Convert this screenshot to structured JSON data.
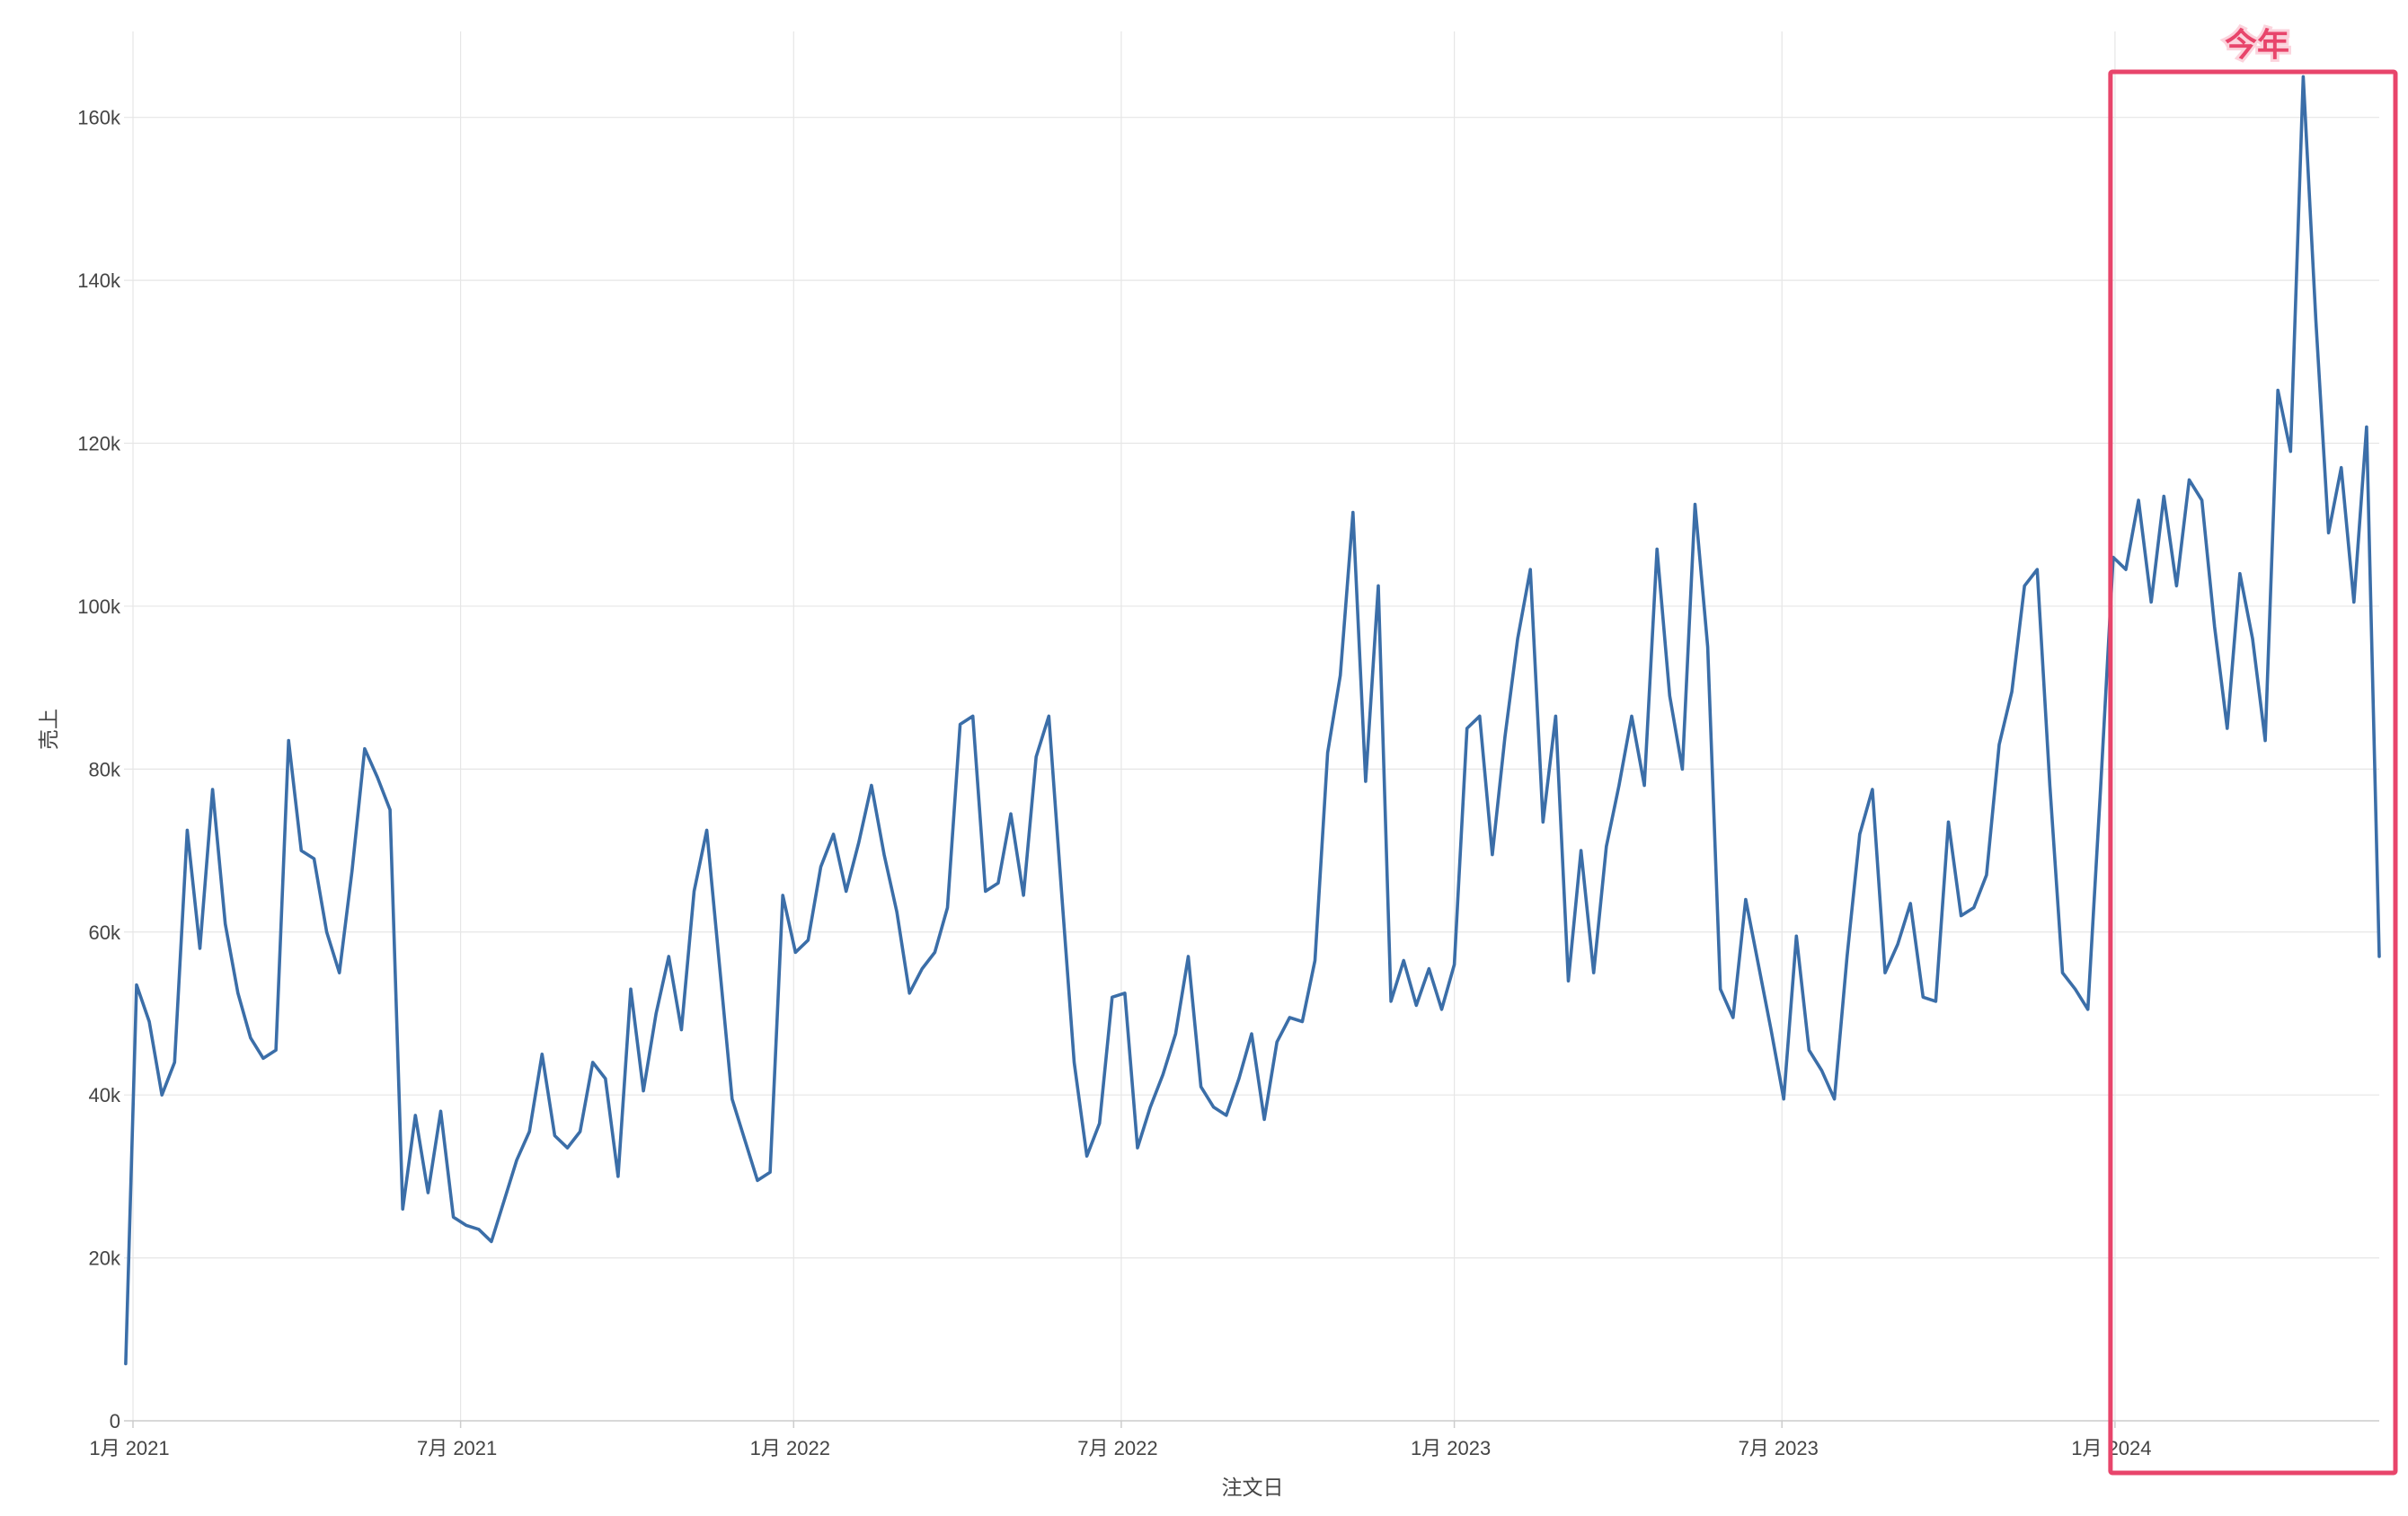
{
  "chart_data": {
    "type": "line",
    "xlabel": "注文日",
    "ylabel": "売上",
    "ylim": [
      0,
      170000
    ],
    "xlim": [
      "2021-01-01",
      "2024-11-01"
    ],
    "grid": true,
    "y_ticks": [
      {
        "value": 0,
        "label": "0"
      },
      {
        "value": 20000,
        "label": "20k"
      },
      {
        "value": 40000,
        "label": "40k"
      },
      {
        "value": 60000,
        "label": "60k"
      },
      {
        "value": 80000,
        "label": "80k"
      },
      {
        "value": 100000,
        "label": "100k"
      },
      {
        "value": 120000,
        "label": "120k"
      },
      {
        "value": 140000,
        "label": "140k"
      },
      {
        "value": 160000,
        "label": "160k"
      }
    ],
    "x_ticks": [
      {
        "date": "2021-01-01",
        "label": "1月 2021"
      },
      {
        "date": "2021-07-01",
        "label": "7月 2021"
      },
      {
        "date": "2022-01-01",
        "label": "1月 2022"
      },
      {
        "date": "2022-07-01",
        "label": "7月 2022"
      },
      {
        "date": "2023-01-01",
        "label": "1月 2023"
      },
      {
        "date": "2023-07-01",
        "label": "7月 2023"
      },
      {
        "date": "2024-01-01",
        "label": "1月 2024"
      }
    ],
    "series": [
      {
        "color": "#3b6ea8",
        "points": [
          [
            "2020-12-28",
            7000
          ],
          [
            "2021-01-03",
            53500
          ],
          [
            "2021-01-10",
            49000
          ],
          [
            "2021-01-17",
            40000
          ],
          [
            "2021-01-24",
            44000
          ],
          [
            "2021-01-31",
            72500
          ],
          [
            "2021-02-07",
            58000
          ],
          [
            "2021-02-14",
            77500
          ],
          [
            "2021-02-21",
            61000
          ],
          [
            "2021-02-28",
            52500
          ],
          [
            "2021-03-07",
            47000
          ],
          [
            "2021-03-14",
            44500
          ],
          [
            "2021-03-21",
            45500
          ],
          [
            "2021-03-28",
            83500
          ],
          [
            "2021-04-04",
            70000
          ],
          [
            "2021-04-11",
            69000
          ],
          [
            "2021-04-18",
            60000
          ],
          [
            "2021-04-25",
            55000
          ],
          [
            "2021-05-02",
            67500
          ],
          [
            "2021-05-09",
            82500
          ],
          [
            "2021-05-16",
            79000
          ],
          [
            "2021-05-23",
            75000
          ],
          [
            "2021-05-30",
            26000
          ],
          [
            "2021-06-06",
            37500
          ],
          [
            "2021-06-13",
            28000
          ],
          [
            "2021-06-20",
            38000
          ],
          [
            "2021-06-27",
            25000
          ],
          [
            "2021-07-04",
            24000
          ],
          [
            "2021-07-11",
            23500
          ],
          [
            "2021-07-18",
            22000
          ],
          [
            "2021-07-25",
            27000
          ],
          [
            "2021-08-01",
            32000
          ],
          [
            "2021-08-08",
            35500
          ],
          [
            "2021-08-15",
            45000
          ],
          [
            "2021-08-22",
            35000
          ],
          [
            "2021-08-29",
            33500
          ],
          [
            "2021-09-05",
            35500
          ],
          [
            "2021-09-12",
            44000
          ],
          [
            "2021-09-19",
            42000
          ],
          [
            "2021-09-26",
            30000
          ],
          [
            "2021-10-03",
            53000
          ],
          [
            "2021-10-10",
            40500
          ],
          [
            "2021-10-17",
            50000
          ],
          [
            "2021-10-24",
            57000
          ],
          [
            "2021-10-31",
            48000
          ],
          [
            "2021-11-07",
            65000
          ],
          [
            "2021-11-14",
            72500
          ],
          [
            "2021-11-21",
            56000
          ],
          [
            "2021-11-28",
            39500
          ],
          [
            "2021-12-05",
            34500
          ],
          [
            "2021-12-12",
            29500
          ],
          [
            "2021-12-19",
            30500
          ],
          [
            "2021-12-26",
            64500
          ],
          [
            "2022-01-02",
            57500
          ],
          [
            "2022-01-09",
            59000
          ],
          [
            "2022-01-16",
            68000
          ],
          [
            "2022-01-23",
            72000
          ],
          [
            "2022-01-30",
            65000
          ],
          [
            "2022-02-06",
            71000
          ],
          [
            "2022-02-13",
            78000
          ],
          [
            "2022-02-20",
            69500
          ],
          [
            "2022-02-27",
            62500
          ],
          [
            "2022-03-06",
            52500
          ],
          [
            "2022-03-13",
            55500
          ],
          [
            "2022-03-20",
            57500
          ],
          [
            "2022-03-27",
            63000
          ],
          [
            "2022-04-03",
            85500
          ],
          [
            "2022-04-10",
            86500
          ],
          [
            "2022-04-17",
            65000
          ],
          [
            "2022-04-24",
            66000
          ],
          [
            "2022-05-01",
            74500
          ],
          [
            "2022-05-08",
            64500
          ],
          [
            "2022-05-15",
            81500
          ],
          [
            "2022-05-22",
            86500
          ],
          [
            "2022-05-29",
            65000
          ],
          [
            "2022-06-05",
            44000
          ],
          [
            "2022-06-12",
            32500
          ],
          [
            "2022-06-19",
            36500
          ],
          [
            "2022-06-26",
            52000
          ],
          [
            "2022-07-03",
            52500
          ],
          [
            "2022-07-10",
            33500
          ],
          [
            "2022-07-17",
            38500
          ],
          [
            "2022-07-24",
            42500
          ],
          [
            "2022-07-31",
            47500
          ],
          [
            "2022-08-07",
            57000
          ],
          [
            "2022-08-14",
            41000
          ],
          [
            "2022-08-21",
            38500
          ],
          [
            "2022-08-28",
            37500
          ],
          [
            "2022-09-04",
            42000
          ],
          [
            "2022-09-11",
            47500
          ],
          [
            "2022-09-18",
            37000
          ],
          [
            "2022-09-25",
            46500
          ],
          [
            "2022-10-02",
            49500
          ],
          [
            "2022-10-09",
            49000
          ],
          [
            "2022-10-16",
            56500
          ],
          [
            "2022-10-23",
            82000
          ],
          [
            "2022-10-30",
            91500
          ],
          [
            "2022-11-06",
            111500
          ],
          [
            "2022-11-13",
            78500
          ],
          [
            "2022-11-20",
            102500
          ],
          [
            "2022-11-27",
            51500
          ],
          [
            "2022-12-04",
            56500
          ],
          [
            "2022-12-11",
            51000
          ],
          [
            "2022-12-18",
            55500
          ],
          [
            "2022-12-25",
            50500
          ],
          [
            "2023-01-01",
            56000
          ],
          [
            "2023-01-08",
            85000
          ],
          [
            "2023-01-15",
            86500
          ],
          [
            "2023-01-22",
            69500
          ],
          [
            "2023-01-29",
            84000
          ],
          [
            "2023-02-05",
            96000
          ],
          [
            "2023-02-12",
            104500
          ],
          [
            "2023-02-19",
            73500
          ],
          [
            "2023-02-26",
            86500
          ],
          [
            "2023-03-05",
            54000
          ],
          [
            "2023-03-12",
            70000
          ],
          [
            "2023-03-19",
            55000
          ],
          [
            "2023-03-26",
            70500
          ],
          [
            "2023-04-02",
            78000
          ],
          [
            "2023-04-09",
            86500
          ],
          [
            "2023-04-16",
            78000
          ],
          [
            "2023-04-23",
            107000
          ],
          [
            "2023-04-30",
            89000
          ],
          [
            "2023-05-07",
            80000
          ],
          [
            "2023-05-14",
            112500
          ],
          [
            "2023-05-21",
            95000
          ],
          [
            "2023-05-28",
            53000
          ],
          [
            "2023-06-04",
            49500
          ],
          [
            "2023-06-11",
            64000
          ],
          [
            "2023-06-18",
            56000
          ],
          [
            "2023-06-25",
            48000
          ],
          [
            "2023-07-02",
            39500
          ],
          [
            "2023-07-09",
            59500
          ],
          [
            "2023-07-16",
            45500
          ],
          [
            "2023-07-23",
            43000
          ],
          [
            "2023-07-30",
            39500
          ],
          [
            "2023-08-06",
            57000
          ],
          [
            "2023-08-13",
            72000
          ],
          [
            "2023-08-20",
            77500
          ],
          [
            "2023-08-27",
            55000
          ],
          [
            "2023-09-03",
            58500
          ],
          [
            "2023-09-10",
            63500
          ],
          [
            "2023-09-17",
            52000
          ],
          [
            "2023-09-24",
            51500
          ],
          [
            "2023-10-01",
            73500
          ],
          [
            "2023-10-08",
            62000
          ],
          [
            "2023-10-15",
            63000
          ],
          [
            "2023-10-22",
            67000
          ],
          [
            "2023-10-29",
            83000
          ],
          [
            "2023-11-05",
            89500
          ],
          [
            "2023-11-12",
            102500
          ],
          [
            "2023-11-19",
            104500
          ],
          [
            "2023-11-26",
            78000
          ],
          [
            "2023-12-03",
            55000
          ],
          [
            "2023-12-10",
            53000
          ],
          [
            "2023-12-17",
            50500
          ],
          [
            "2023-12-24",
            77500
          ],
          [
            "2023-12-31",
            106000
          ],
          [
            "2024-01-07",
            104500
          ],
          [
            "2024-01-14",
            113000
          ],
          [
            "2024-01-21",
            100500
          ],
          [
            "2024-01-28",
            113500
          ],
          [
            "2024-02-04",
            102500
          ],
          [
            "2024-02-11",
            115500
          ],
          [
            "2024-02-18",
            113000
          ],
          [
            "2024-02-25",
            97500
          ],
          [
            "2024-03-03",
            85000
          ],
          [
            "2024-03-10",
            104000
          ],
          [
            "2024-03-17",
            96000
          ],
          [
            "2024-03-24",
            83500
          ],
          [
            "2024-03-31",
            126500
          ],
          [
            "2024-04-07",
            119000
          ],
          [
            "2024-04-14",
            165000
          ],
          [
            "2024-04-21",
            135000
          ],
          [
            "2024-04-28",
            109000
          ],
          [
            "2024-05-05",
            117000
          ],
          [
            "2024-05-12",
            100500
          ],
          [
            "2024-05-19",
            122000
          ],
          [
            "2024-05-26",
            57000
          ]
        ]
      }
    ],
    "annotation": {
      "label": "今年",
      "start": "2023-12-31",
      "color": "#e8456b"
    }
  }
}
